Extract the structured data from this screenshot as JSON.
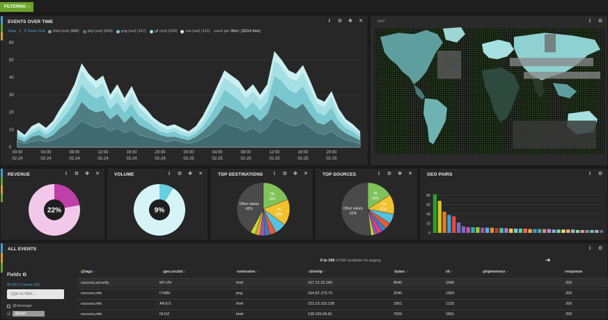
{
  "topbar": {
    "filter_label": "FILTERING"
  },
  "events_over_time": {
    "title": "EVENTS OVER TIME",
    "view_label": "View",
    "zoom_out_label": "Zoom Out",
    "legend": [
      {
        "label": "html (ext) (888)",
        "color": "#7aa3a3"
      },
      {
        "label": "php (ext) (659)",
        "color": "#4f7d82"
      },
      {
        "label": "png (ext) (317)",
        "color": "#79c7cf"
      },
      {
        "label": "gif (ext) (229)",
        "color": "#a6e0e4"
      },
      {
        "label": "css (ext) (121)",
        "color": "#cbeff2"
      }
    ],
    "count_label_prefix": "count per",
    "count_interval": "30m",
    "total_hits": "(2214 hits)"
  },
  "chart_data": [
    {
      "type": "area",
      "title": "EVENTS OVER TIME",
      "ylim": [
        0,
        60
      ],
      "yticks": [
        0,
        10,
        20,
        30,
        40,
        50,
        60
      ],
      "xtick_labels": [
        [
          "00:00",
          "02-24"
        ],
        [
          "04:00",
          "02-24"
        ],
        [
          "08:00",
          "02-24"
        ],
        [
          "12:00",
          "02-24"
        ],
        [
          "16:00",
          "02-24"
        ],
        [
          "20:00",
          "02-24"
        ],
        [
          "00:00",
          "02-25"
        ],
        [
          "04:00",
          "02-25"
        ],
        [
          "08:00",
          "02-25"
        ],
        [
          "12:00",
          "02-25"
        ],
        [
          "16:00",
          "02-25"
        ],
        [
          "20:00",
          "02-25"
        ]
      ],
      "x_hours": [
        0,
        1,
        2,
        3,
        4,
        5,
        6,
        7,
        8,
        9,
        10,
        11,
        12,
        13,
        14,
        15,
        16,
        17,
        18,
        19,
        20,
        21,
        22,
        23,
        24,
        25,
        26,
        27,
        28,
        29,
        30,
        31,
        32,
        33,
        34,
        35,
        36,
        37,
        38,
        39,
        40,
        41,
        42,
        43,
        44,
        45,
        46,
        47,
        48
      ],
      "series": [
        {
          "name": "css (ext)",
          "color": "#cbeff2",
          "values": [
            10,
            7,
            12,
            14,
            11,
            15,
            22,
            28,
            36,
            48,
            42,
            38,
            41,
            30,
            36,
            28,
            35,
            26,
            22,
            17,
            14,
            12,
            13,
            11,
            9,
            12,
            18,
            26,
            35,
            44,
            41,
            38,
            32,
            36,
            30,
            36,
            55,
            50,
            44,
            42,
            47,
            38,
            28,
            26,
            32,
            22,
            16,
            13,
            9
          ]
        },
        {
          "name": "gif (ext)",
          "color": "#a6e0e4",
          "values": [
            9,
            6,
            10,
            12,
            9,
            13,
            19,
            25,
            32,
            44,
            38,
            34,
            37,
            27,
            32,
            25,
            31,
            23,
            19,
            15,
            12,
            10,
            11,
            9,
            8,
            10,
            15,
            23,
            31,
            40,
            37,
            34,
            28,
            32,
            27,
            32,
            50,
            46,
            40,
            38,
            43,
            34,
            25,
            23,
            29,
            19,
            14,
            11,
            8
          ]
        },
        {
          "name": "png (ext)",
          "color": "#79c7cf",
          "values": [
            7,
            5,
            8,
            10,
            7,
            10,
            15,
            20,
            26,
            36,
            31,
            28,
            30,
            22,
            26,
            20,
            25,
            18,
            15,
            12,
            9,
            8,
            9,
            7,
            6,
            8,
            12,
            18,
            25,
            33,
            30,
            27,
            22,
            26,
            21,
            26,
            41,
            38,
            33,
            31,
            35,
            27,
            20,
            18,
            23,
            15,
            11,
            9,
            6
          ]
        },
        {
          "name": "php (ext)",
          "color": "#4f7d82",
          "values": [
            5,
            3,
            6,
            7,
            5,
            7,
            11,
            14,
            19,
            26,
            22,
            20,
            21,
            16,
            19,
            14,
            18,
            13,
            11,
            9,
            7,
            6,
            6,
            5,
            4,
            6,
            9,
            13,
            18,
            24,
            22,
            20,
            16,
            19,
            15,
            19,
            30,
            27,
            24,
            22,
            25,
            19,
            14,
            13,
            16,
            11,
            8,
            6,
            4
          ]
        },
        {
          "name": "html (ext)",
          "color": "#3e6a70",
          "values": [
            3,
            2,
            3,
            4,
            3,
            4,
            6,
            8,
            11,
            15,
            13,
            11,
            12,
            9,
            11,
            8,
            10,
            7,
            6,
            5,
            4,
            3,
            4,
            3,
            2,
            3,
            5,
            7,
            10,
            14,
            12,
            11,
            9,
            11,
            8,
            11,
            17,
            15,
            13,
            12,
            14,
            11,
            8,
            7,
            9,
            6,
            4,
            3,
            2
          ]
        }
      ]
    },
    {
      "type": "pie",
      "title": "REVENUE",
      "value_label": "22%",
      "slices": [
        {
          "value": 22,
          "color": "#c03fa8"
        },
        {
          "value": 78,
          "color": "#f2c8ea"
        }
      ]
    },
    {
      "type": "pie",
      "title": "VOLUME",
      "value_label": "9%",
      "slices": [
        {
          "value": 9,
          "color": "#66d0e0"
        },
        {
          "value": 91,
          "color": "#d6f4f8"
        }
      ]
    },
    {
      "type": "pie",
      "title": "TOP DESTINATIONS",
      "slices": [
        {
          "label": "CN",
          "pct": "19%",
          "value": 19,
          "color": "#7fc35a"
        },
        {
          "label": "IN",
          "pct": "16%",
          "value": 16,
          "color": "#f2c12e"
        },
        {
          "value": 7,
          "color": "#55c3e0"
        },
        {
          "value": 4,
          "color": "#e25c3d"
        },
        {
          "value": 3,
          "color": "#3a7fc7"
        },
        {
          "value": 3,
          "color": "#9b59b6"
        },
        {
          "value": 3,
          "color": "#e0a23a"
        },
        {
          "value": 3,
          "color": "#c8d936"
        },
        {
          "label": "Other values",
          "pct": "42%",
          "value": 42,
          "color": "#4a4a4a"
        }
      ]
    },
    {
      "type": "pie",
      "title": "TOP SOURCES",
      "slices": [
        {
          "label": "IN",
          "pct": "16%",
          "value": 16,
          "color": "#7fc35a"
        },
        {
          "label": "CN",
          "pct": "12%",
          "value": 12,
          "color": "#f2c12e"
        },
        {
          "value": 6,
          "color": "#55c3e0"
        },
        {
          "value": 4,
          "color": "#e25c3d"
        },
        {
          "value": 3,
          "color": "#3a7fc7"
        },
        {
          "value": 3,
          "color": "#e03f8a"
        },
        {
          "value": 2,
          "color": "#9b59b6"
        },
        {
          "value": 2,
          "color": "#c8d936"
        },
        {
          "label": "Other values",
          "pct": "52%",
          "value": 52,
          "color": "#4a4a4a"
        }
      ]
    },
    {
      "type": "bar",
      "title": "GEO PAIRS",
      "ylim": [
        0,
        80
      ],
      "yticks": [
        0,
        20,
        40,
        60,
        80
      ],
      "values": [
        82,
        68,
        45,
        38,
        35,
        22,
        14,
        12,
        12,
        12,
        11,
        11,
        11,
        10,
        10,
        10,
        9,
        9,
        9,
        9,
        8,
        8,
        8,
        8,
        8,
        7,
        7,
        7,
        7,
        7,
        6,
        6,
        6,
        6,
        6,
        6
      ],
      "colors": [
        "#2ca02c",
        "#d4c22e",
        "#e67e22",
        "#3fa0d8",
        "#e74c3c",
        "#7c6bc4",
        "#7c6bc4",
        "#cc4fb2",
        "#2bb3b7",
        "#a6c63a",
        "#9b59b6",
        "#5dade2",
        "#e68f2f",
        "#c0392b",
        "#48c9b0",
        "#af7ac5",
        "#f4d03f",
        "#85c1e9",
        "#58d68d",
        "#ec7063",
        "#f5b041",
        "#5499c7",
        "#45b39d",
        "#d98880",
        "#bb8fce",
        "#7fb3d5",
        "#76d7c4",
        "#f7dc6f",
        "#f0b27a",
        "#aab7b8",
        "#82e0aa",
        "#f1948a",
        "#85929e",
        "#73c6b6",
        "#c39bd3",
        "#5d6d7e"
      ]
    }
  ],
  "map": {
    "title": "MAP"
  },
  "revenue": {
    "title": "REVENUE"
  },
  "volume": {
    "title": "VOLUME"
  },
  "top_destinations": {
    "title": "TOP DESTINATIONS"
  },
  "top_sources": {
    "title": "TOP SOURCES"
  },
  "geo_pairs": {
    "title": "GEO PAIRS"
  },
  "all_events": {
    "title": "ALL EVENTS",
    "fields_title": "Fields",
    "all_link": "All (51)",
    "separator": "/",
    "current_link": "Current (26)",
    "filter_placeholder": "Type to filter...",
    "field_list": [
      {
        "name": "@message",
        "checked": false
      },
      {
        "name": "@tags",
        "checked": true
      }
    ],
    "paging": {
      "range": "0 to 100",
      "rest": "of 500 available for paging"
    },
    "columns": [
      "@tags",
      "geo.srcdst",
      "extension",
      "clientip",
      "bytes",
      "id",
      "phpmemory",
      "response"
    ],
    "rows": [
      [
        "success,security",
        "MY:VN",
        "html",
        "167.12.22.189",
        "8540",
        "1066",
        "",
        "200"
      ],
      [
        "success,info",
        "IT:MM",
        "png",
        "164.87.170.73",
        "2045",
        "1903",
        "",
        "200"
      ],
      [
        "success,info",
        "AR:ES",
        "html",
        "222.23.102.238",
        "1801",
        "1133",
        "",
        "200"
      ],
      [
        "success,info",
        "IN:DZ",
        "html",
        "138.226.66.81",
        "7029",
        "1801",
        "",
        "200"
      ]
    ]
  }
}
